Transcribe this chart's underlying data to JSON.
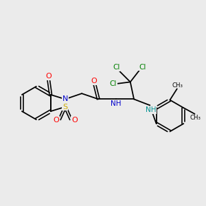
{
  "background_color": "#ebebeb",
  "bond_color": "#000000",
  "atom_colors": {
    "N": "#0000cc",
    "O": "#ff0000",
    "S": "#ccaa00",
    "Cl": "#008000",
    "NH_teal": "#009090",
    "NH_blue": "#0000cc"
  },
  "figsize": [
    3.0,
    3.0
  ],
  "dpi": 100
}
